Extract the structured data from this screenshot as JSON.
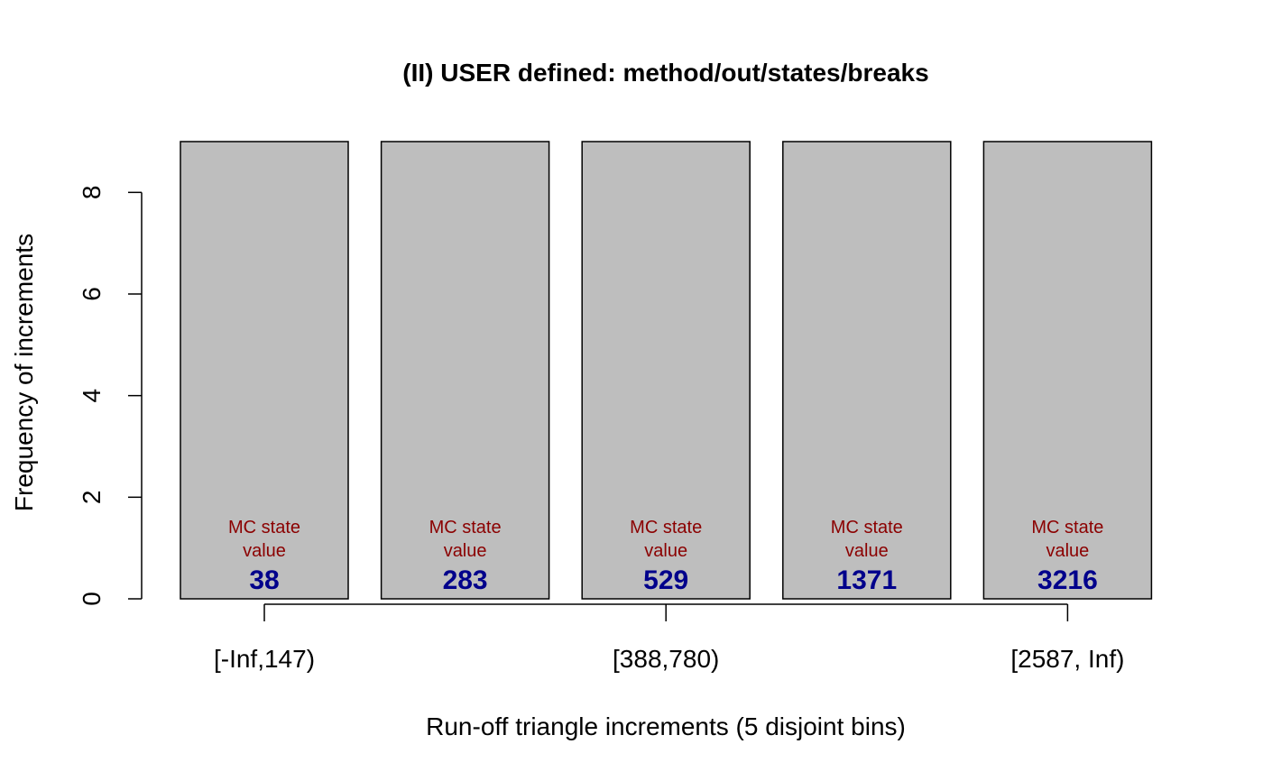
{
  "chart_data": {
    "type": "bar",
    "title": "(II) USER defined: method/out/states/breaks",
    "xlabel": "Run-off triangle increments (5 disjoint bins)",
    "ylabel": "Frequency of increments",
    "categories": [
      "[-Inf,147)",
      "",
      "[388,780)",
      "",
      "[2587, Inf)"
    ],
    "values": [
      9,
      9,
      9,
      9,
      9
    ],
    "ylim": [
      0,
      9
    ],
    "yticks": [
      0,
      2,
      4,
      6,
      8
    ],
    "state_caption_line1": "MC state",
    "state_caption_line2": "value",
    "state_values": [
      "38",
      "283",
      "529",
      "1371",
      "3216"
    ],
    "grid": false,
    "colors": {
      "bar_fill": "#bebebe",
      "bar_stroke": "#000000",
      "caption": "#8b0000",
      "state_value": "#00008b"
    }
  }
}
